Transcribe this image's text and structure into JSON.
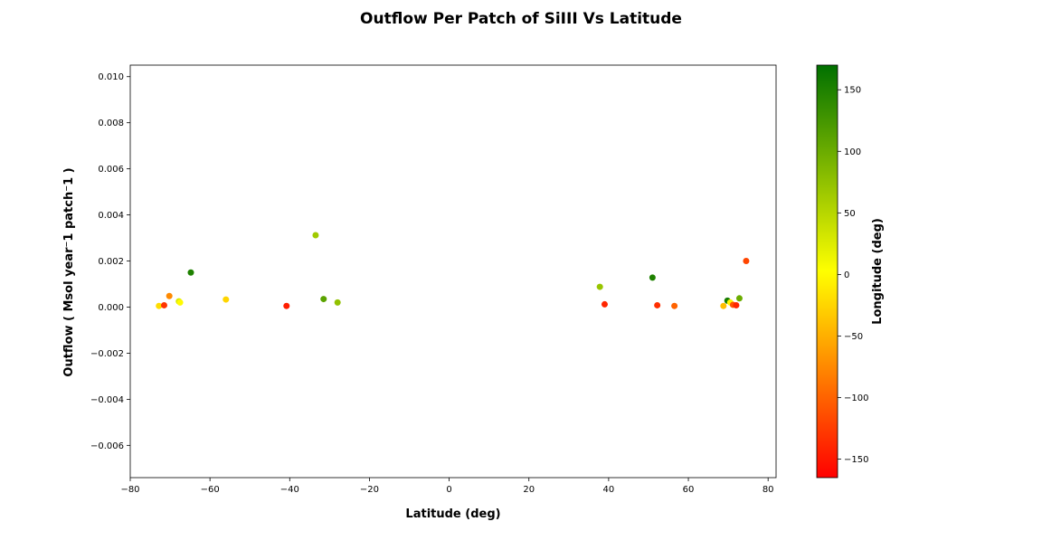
{
  "chart_data": {
    "type": "scatter",
    "title": "Outflow Per Patch of SiIII Vs Latitude",
    "xlabel": "Latitude (deg)",
    "ylabel": "Outflow ( Msol year⁻1 patch⁻1 )",
    "colorbar_label": "Longitude (deg)",
    "xlim": [
      -80,
      82
    ],
    "ylim": [
      -0.0074,
      0.0105
    ],
    "xticks": [
      -80,
      -60,
      -40,
      -20,
      0,
      20,
      40,
      60,
      80
    ],
    "xtick_labels": [
      "−80",
      "−60",
      "−40",
      "−20",
      "0",
      "20",
      "40",
      "60",
      "80"
    ],
    "yticks": [
      -0.006,
      -0.004,
      -0.002,
      0.0,
      0.002,
      0.004,
      0.006,
      0.008,
      0.01
    ],
    "ytick_labels": [
      "−0.006",
      "−0.004",
      "−0.002",
      "0.000",
      "0.002",
      "0.004",
      "0.006",
      "0.008",
      "0.010"
    ],
    "colorbar_range": [
      -165,
      170
    ],
    "colorbar_ticks": [
      -150,
      -100,
      -50,
      0,
      50,
      100,
      150
    ],
    "colorbar_tick_labels": [
      "−150",
      "−100",
      "−50",
      "0",
      "50",
      "100",
      "150"
    ],
    "colormap": [
      "#ff0000",
      "#ffff00",
      "#007000"
    ],
    "grid": false,
    "points": [
      {
        "lat": -72.8,
        "outflow": 5e-05,
        "lon": -20
      },
      {
        "lat": -71.5,
        "outflow": 8e-05,
        "lon": -130
      },
      {
        "lat": -70.2,
        "outflow": 0.00048,
        "lon": -75
      },
      {
        "lat": -67.8,
        "outflow": 0.00025,
        "lon": 30
      },
      {
        "lat": -67.5,
        "outflow": 0.0002,
        "lon": 0
      },
      {
        "lat": -64.8,
        "outflow": 0.0015,
        "lon": 150
      },
      {
        "lat": -56.0,
        "outflow": 0.00033,
        "lon": -25
      },
      {
        "lat": -40.8,
        "outflow": 5e-05,
        "lon": -145
      },
      {
        "lat": -33.5,
        "outflow": 0.00312,
        "lon": 65
      },
      {
        "lat": -31.5,
        "outflow": 0.00035,
        "lon": 110
      },
      {
        "lat": -28.0,
        "outflow": 0.0002,
        "lon": 75
      },
      {
        "lat": 37.8,
        "outflow": 0.00088,
        "lon": 70
      },
      {
        "lat": 39.0,
        "outflow": 0.00012,
        "lon": -140
      },
      {
        "lat": 51.0,
        "outflow": 0.00128,
        "lon": 150
      },
      {
        "lat": 52.2,
        "outflow": 8e-05,
        "lon": -135
      },
      {
        "lat": 56.5,
        "outflow": 5e-05,
        "lon": -100
      },
      {
        "lat": 68.8,
        "outflow": 5e-05,
        "lon": -40
      },
      {
        "lat": 69.8,
        "outflow": 0.00028,
        "lon": 155
      },
      {
        "lat": 70.5,
        "outflow": 0.0002,
        "lon": -5
      },
      {
        "lat": 71.2,
        "outflow": 0.0001,
        "lon": -110
      },
      {
        "lat": 72.0,
        "outflow": 8e-05,
        "lon": -140
      },
      {
        "lat": 72.8,
        "outflow": 0.00038,
        "lon": 100
      },
      {
        "lat": 74.5,
        "outflow": 0.002,
        "lon": -120
      }
    ]
  }
}
